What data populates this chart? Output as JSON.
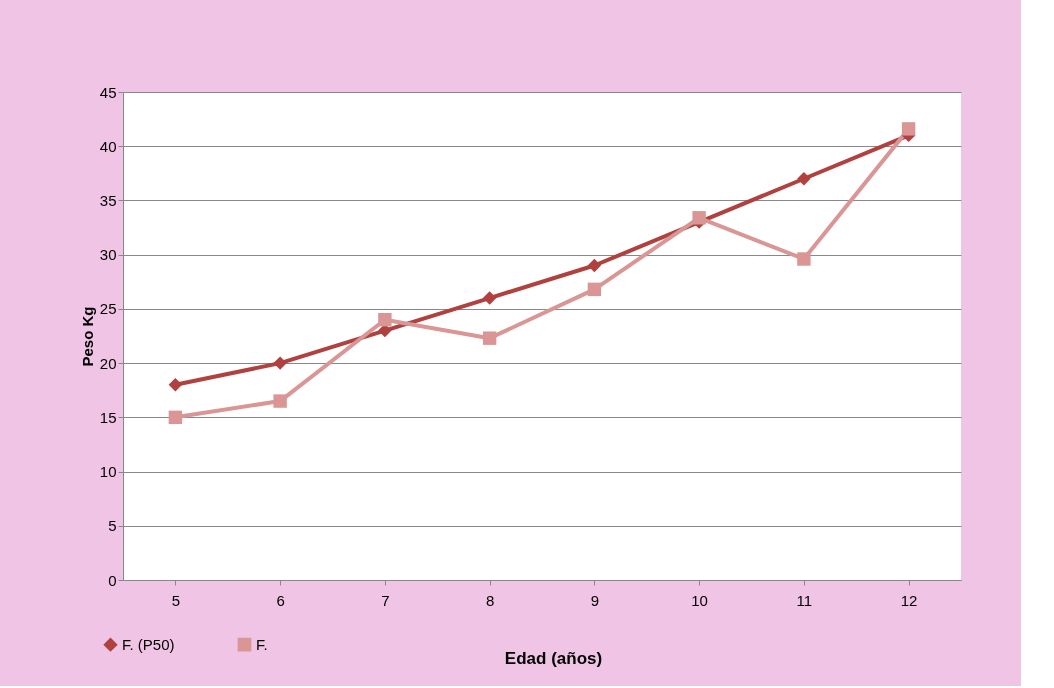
{
  "chart_data": {
    "type": "line",
    "xlabel": "Edad (años)",
    "ylabel": "Peso Kg",
    "categories": [
      "5",
      "6",
      "7",
      "8",
      "9",
      "10",
      "11",
      "12"
    ],
    "series": [
      {
        "name": "F. (P50)",
        "color": "#b0413e",
        "marker": "diamond",
        "values": [
          18,
          20,
          23,
          26,
          29,
          33,
          37,
          41
        ]
      },
      {
        "name": "F.",
        "color": "#d99694",
        "marker": "square",
        "values": [
          15,
          16.5,
          24,
          22.3,
          26.8,
          33.4,
          29.6,
          41.6
        ]
      }
    ],
    "ylim": [
      0,
      45
    ],
    "yticks": [
      0,
      5,
      10,
      15,
      20,
      25,
      30,
      35,
      40,
      45
    ],
    "grid": "y",
    "legend": "bottom left",
    "line_style": "solid"
  }
}
